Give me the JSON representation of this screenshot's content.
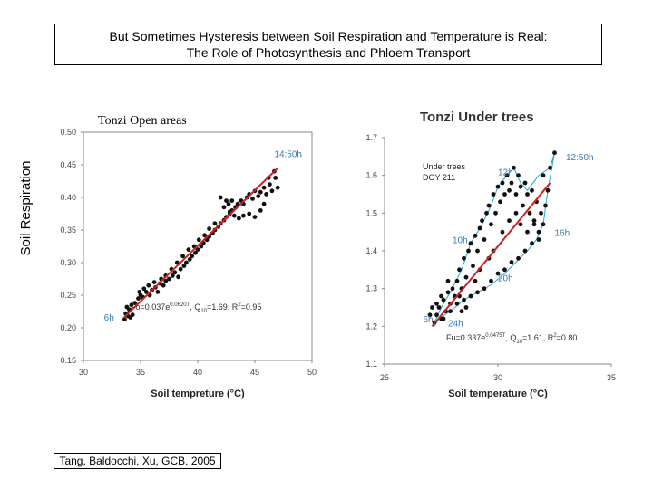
{
  "slide": {
    "title_line1": "But Sometimes Hysteresis between Soil Respiration and Temperature is Real:",
    "title_line2": "The Role of Photosynthesis and Phloem Transport",
    "ylabel": "Soil Respiration",
    "citation": "Tang, Baldocchi, Xu, GCB, 2005"
  },
  "colors": {
    "points": "#111111",
    "fit_line": "#cc2222",
    "loop_line": "#22aacc",
    "annotation": "#3a7ab8"
  },
  "chart_data": [
    {
      "type": "scatter",
      "title": "Tonzi Open areas",
      "xlabel": "Soil tempreture (°C)",
      "ylabel": "",
      "xlim": [
        30,
        50
      ],
      "ylim": [
        0.15,
        0.5
      ],
      "xticks": [
        "30",
        "35",
        "40",
        "45",
        "50"
      ],
      "yticks": [
        "0.15",
        "0.20",
        "0.25",
        "0.30",
        "0.35",
        "0.40",
        "0.45",
        "0.50"
      ],
      "equation": "Fo=0.037e",
      "equation_exp": "0.0620T",
      "equation_rest": ", Q",
      "equation_sub": "10",
      "equation_tail": "=1.69, R",
      "equation_sup2": "2",
      "equation_end": "=0.95",
      "labels": [
        {
          "text": "14:50h",
          "x": 46.7,
          "y": 0.462
        },
        {
          "text": "6h",
          "x": 31.8,
          "y": 0.211
        }
      ],
      "fit": {
        "x": [
          33.5,
          47
        ],
        "y": [
          0.215,
          0.445
        ]
      },
      "points": [
        [
          33.6,
          0.213
        ],
        [
          33.7,
          0.222
        ],
        [
          33.9,
          0.218
        ],
        [
          34.0,
          0.228
        ],
        [
          34.1,
          0.216
        ],
        [
          34.3,
          0.22
        ],
        [
          33.8,
          0.232
        ],
        [
          34.2,
          0.235
        ],
        [
          34.5,
          0.238
        ],
        [
          34.8,
          0.245
        ],
        [
          35.0,
          0.25
        ],
        [
          35.2,
          0.247
        ],
        [
          35.5,
          0.255
        ],
        [
          35.8,
          0.25
        ],
        [
          36.0,
          0.258
        ],
        [
          36.3,
          0.262
        ],
        [
          36.5,
          0.255
        ],
        [
          36.7,
          0.268
        ],
        [
          37.0,
          0.265
        ],
        [
          37.2,
          0.272
        ],
        [
          37.5,
          0.275
        ],
        [
          37.8,
          0.28
        ],
        [
          38.0,
          0.285
        ],
        [
          38.3,
          0.278
        ],
        [
          38.5,
          0.29
        ],
        [
          38.8,
          0.295
        ],
        [
          39.0,
          0.3
        ],
        [
          39.3,
          0.305
        ],
        [
          39.5,
          0.31
        ],
        [
          39.8,
          0.315
        ],
        [
          40.0,
          0.32
        ],
        [
          40.3,
          0.325
        ],
        [
          40.5,
          0.33
        ],
        [
          40.8,
          0.335
        ],
        [
          41.0,
          0.34
        ],
        [
          41.3,
          0.345
        ],
        [
          41.5,
          0.35
        ],
        [
          41.8,
          0.355
        ],
        [
          42.0,
          0.36
        ],
        [
          42.3,
          0.365
        ],
        [
          42.5,
          0.37
        ],
        [
          42.8,
          0.375
        ],
        [
          43.0,
          0.38
        ],
        [
          43.3,
          0.385
        ],
        [
          43.5,
          0.39
        ],
        [
          43.8,
          0.395
        ],
        [
          44.0,
          0.39
        ],
        [
          44.3,
          0.4
        ],
        [
          44.5,
          0.405
        ],
        [
          44.8,
          0.398
        ],
        [
          45.0,
          0.41
        ],
        [
          45.3,
          0.402
        ],
        [
          45.5,
          0.408
        ],
        [
          45.8,
          0.415
        ],
        [
          46.0,
          0.405
        ],
        [
          46.3,
          0.42
        ],
        [
          46.5,
          0.41
        ],
        [
          46.8,
          0.43
        ],
        [
          47.0,
          0.415
        ],
        [
          46.7,
          0.44
        ],
        [
          46.2,
          0.43
        ],
        [
          42.0,
          0.4
        ],
        [
          42.5,
          0.395
        ],
        [
          42.3,
          0.385
        ],
        [
          42.8,
          0.378
        ],
        [
          43.2,
          0.372
        ],
        [
          43.6,
          0.368
        ],
        [
          44.0,
          0.372
        ],
        [
          44.5,
          0.375
        ],
        [
          45.0,
          0.37
        ],
        [
          45.5,
          0.38
        ],
        [
          45.8,
          0.39
        ],
        [
          43.0,
          0.395
        ],
        [
          42.7,
          0.39
        ],
        [
          41.5,
          0.36
        ],
        [
          41.0,
          0.352
        ],
        [
          40.6,
          0.342
        ],
        [
          40.1,
          0.335
        ],
        [
          39.7,
          0.325
        ],
        [
          39.2,
          0.32
        ],
        [
          38.7,
          0.31
        ],
        [
          38.2,
          0.3
        ],
        [
          37.7,
          0.29
        ],
        [
          37.2,
          0.28
        ],
        [
          36.8,
          0.275
        ],
        [
          36.2,
          0.27
        ],
        [
          35.7,
          0.265
        ],
        [
          35.3,
          0.26
        ],
        [
          34.9,
          0.255
        ]
      ]
    },
    {
      "type": "scatter",
      "title": "Tonzi Under trees",
      "xlabel": "Soil temperature (°C)",
      "ylabel": "",
      "xlim": [
        25,
        35
      ],
      "ylim": [
        1.1,
        1.7
      ],
      "xticks": [
        "25",
        "30",
        "35"
      ],
      "yticks": [
        "1.1",
        "1.2",
        "1.3",
        "1.4",
        "1.5",
        "1.6",
        "1.7"
      ],
      "legend_line1": "Under trees",
      "legend_line2": "DOY 211",
      "equation": "Fu=0.337e",
      "equation_exp": "0.0475T",
      "equation_rest": ", Q",
      "equation_sub": "10",
      "equation_tail": "=1.61, R",
      "equation_sup2": "2",
      "equation_end": "=0.80",
      "labels": [
        {
          "text": "12h",
          "x": 30.0,
          "y": 1.6
        },
        {
          "text": "12:50h",
          "x": 33.0,
          "y": 1.64
        },
        {
          "text": "10h",
          "x": 28.0,
          "y": 1.42
        },
        {
          "text": "16h",
          "x": 32.5,
          "y": 1.44
        },
        {
          "text": "20h",
          "x": 30.0,
          "y": 1.32
        },
        {
          "text": "6h",
          "x": 26.7,
          "y": 1.21
        },
        {
          "text": "24h",
          "x": 27.8,
          "y": 1.2
        }
      ],
      "fit": {
        "x": [
          27.1,
          32.3
        ],
        "y": [
          1.2,
          1.58
        ]
      },
      "points": [
        [
          27.2,
          1.21
        ],
        [
          27.3,
          1.23
        ],
        [
          27.4,
          1.25
        ],
        [
          27.5,
          1.22
        ],
        [
          27.6,
          1.27
        ],
        [
          27.7,
          1.24
        ],
        [
          27.8,
          1.29
        ],
        [
          27.9,
          1.26
        ],
        [
          28.0,
          1.3
        ],
        [
          28.1,
          1.28
        ],
        [
          28.2,
          1.32
        ],
        [
          28.3,
          1.35
        ],
        [
          28.4,
          1.3
        ],
        [
          28.5,
          1.38
        ],
        [
          28.6,
          1.33
        ],
        [
          28.7,
          1.4
        ],
        [
          28.8,
          1.42
        ],
        [
          28.9,
          1.36
        ],
        [
          29.0,
          1.44
        ],
        [
          29.1,
          1.4
        ],
        [
          29.2,
          1.46
        ],
        [
          29.3,
          1.48
        ],
        [
          29.4,
          1.43
        ],
        [
          29.5,
          1.5
        ],
        [
          29.6,
          1.52
        ],
        [
          29.7,
          1.47
        ],
        [
          29.8,
          1.55
        ],
        [
          29.9,
          1.5
        ],
        [
          30.0,
          1.57
        ],
        [
          30.1,
          1.53
        ],
        [
          30.2,
          1.58
        ],
        [
          30.3,
          1.55
        ],
        [
          30.4,
          1.6
        ],
        [
          30.5,
          1.56
        ],
        [
          30.6,
          1.58
        ],
        [
          30.7,
          1.62
        ],
        [
          30.8,
          1.55
        ],
        [
          30.9,
          1.6
        ],
        [
          31.0,
          1.57
        ],
        [
          31.1,
          1.52
        ],
        [
          31.2,
          1.58
        ],
        [
          31.3,
          1.55
        ],
        [
          31.4,
          1.5
        ],
        [
          31.5,
          1.56
        ],
        [
          31.6,
          1.48
        ],
        [
          31.7,
          1.53
        ],
        [
          31.8,
          1.45
        ],
        [
          31.9,
          1.5
        ],
        [
          32.0,
          1.6
        ],
        [
          32.1,
          1.52
        ],
        [
          32.2,
          1.56
        ],
        [
          32.3,
          1.62
        ],
        [
          32.5,
          1.66
        ],
        [
          32.0,
          1.47
        ],
        [
          31.8,
          1.43
        ],
        [
          31.5,
          1.42
        ],
        [
          31.2,
          1.4
        ],
        [
          30.9,
          1.38
        ],
        [
          30.6,
          1.37
        ],
        [
          30.3,
          1.35
        ],
        [
          30.0,
          1.34
        ],
        [
          29.7,
          1.32
        ],
        [
          29.4,
          1.3
        ],
        [
          29.1,
          1.29
        ],
        [
          28.8,
          1.28
        ],
        [
          28.5,
          1.27
        ],
        [
          28.2,
          1.26
        ],
        [
          27.9,
          1.24
        ],
        [
          27.6,
          1.22
        ],
        [
          27.3,
          1.26
        ],
        [
          27.8,
          1.32
        ],
        [
          28.3,
          1.28
        ],
        [
          28.6,
          1.25
        ],
        [
          29.2,
          1.35
        ],
        [
          29.6,
          1.38
        ],
        [
          30.2,
          1.45
        ],
        [
          30.5,
          1.48
        ],
        [
          30.8,
          1.5
        ],
        [
          31.0,
          1.47
        ],
        [
          31.3,
          1.45
        ],
        [
          31.6,
          1.47
        ],
        [
          29.0,
          1.32
        ],
        [
          28.4,
          1.24
        ],
        [
          27.5,
          1.28
        ],
        [
          27.0,
          1.23
        ],
        [
          27.1,
          1.25
        ],
        [
          29.8,
          1.4
        ]
      ],
      "loop_x": [
        27.2,
        27.5,
        27.9,
        28.4,
        28.8,
        29.3,
        29.7,
        30.0,
        30.4,
        30.7,
        31.0,
        31.3,
        31.8,
        32.3,
        32.5,
        32.2,
        32.0,
        31.7,
        31.3,
        30.8,
        30.3,
        29.7,
        29.1,
        28.5,
        27.9,
        27.4,
        27.2
      ],
      "loop_y": [
        1.21,
        1.25,
        1.29,
        1.35,
        1.42,
        1.47,
        1.52,
        1.57,
        1.6,
        1.62,
        1.58,
        1.56,
        1.6,
        1.62,
        1.66,
        1.56,
        1.47,
        1.43,
        1.4,
        1.37,
        1.34,
        1.31,
        1.29,
        1.27,
        1.24,
        1.22,
        1.2
      ]
    }
  ]
}
